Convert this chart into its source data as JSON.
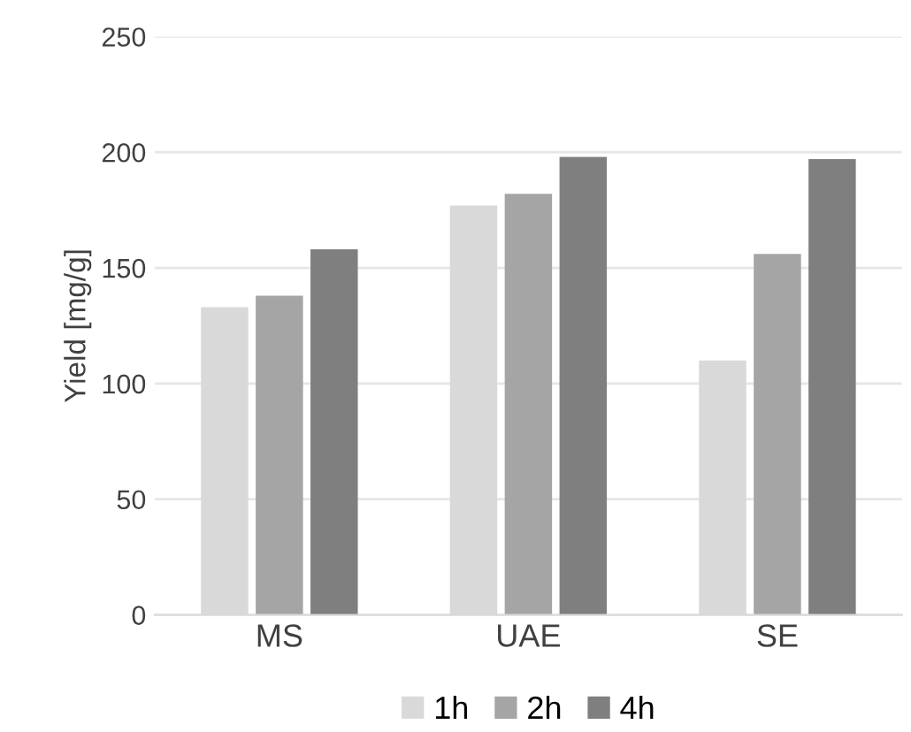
{
  "chart_data": {
    "type": "bar",
    "ylabel": "Yield [mg/g]",
    "categories": [
      "MS",
      "UAE",
      "SE"
    ],
    "series": [
      {
        "name": "1h",
        "color": "#d9d9d9",
        "values": [
          133,
          177,
          110
        ]
      },
      {
        "name": "2h",
        "color": "#a5a5a5",
        "values": [
          138,
          182,
          156
        ]
      },
      {
        "name": "4h",
        "color": "#7f7f7f",
        "values": [
          158,
          198,
          197
        ]
      }
    ],
    "ylim": [
      0,
      250
    ],
    "yticks": [
      0,
      50,
      100,
      150,
      200,
      250
    ],
    "grid": "y",
    "legend": "bottom"
  }
}
